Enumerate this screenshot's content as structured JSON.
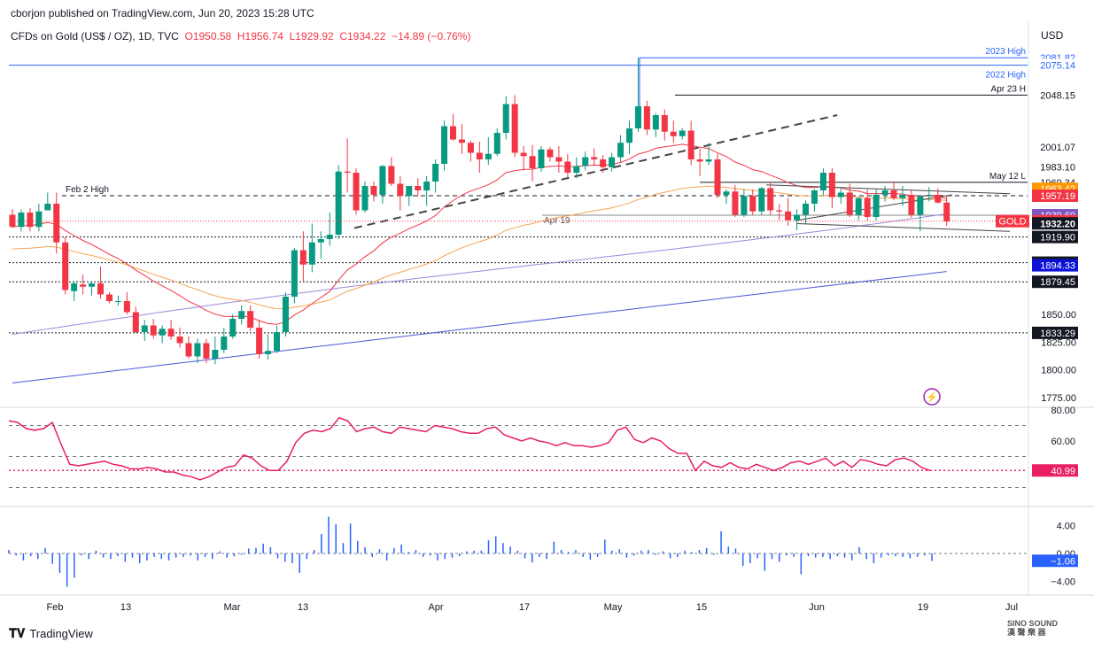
{
  "header": {
    "publisher": "cborjon published on TradingView.com, Jun 20, 2023 15:28 UTC",
    "symbol": "CFDs on Gold (US$ / OZ), 1D, TVC",
    "open": "O1950.58",
    "high": "H1956.74",
    "low": "L1929.92",
    "close": "C1934.22",
    "change": "−14.89 (−0.76%)"
  },
  "currency": "USD",
  "footer": {
    "brand": "TradingView",
    "watermark_line1": "SINO SOUND",
    "watermark_line2": "漢 聲 樂 器"
  },
  "colors": {
    "up": "#089981",
    "down": "#f23645",
    "ema20": "#f23645",
    "ema50": "#f7a350",
    "ma100": "#9c89d9",
    "ma200": "#4a58d9",
    "rsi": "#e91e63",
    "hist": "#2962ff",
    "pricetag_gold": "#f23645",
    "pricetag_1957": "#f23645",
    "pricetag_1963": "#ff9800",
    "pricetag_1939": "#7e57c2",
    "pricetag_1894": "#0c12d9"
  },
  "chart_data": [
    {
      "type": "candlestick",
      "title": "CFDs on Gold (US$ / OZ), 1D, TVC",
      "ylim": [
        1770,
        2090
      ],
      "y_ticks": [
        1775,
        1800,
        1825,
        1850
      ],
      "x_ticks": [
        "Feb",
        "13",
        "Mar",
        "13",
        "Apr",
        "17",
        "May",
        "15",
        "Jun",
        "19",
        "Jul"
      ],
      "candles": [
        [
          1940,
          1945,
          1928,
          1929
        ],
        [
          1929,
          1945,
          1925,
          1942
        ],
        [
          1942,
          1946,
          1925,
          1929
        ],
        [
          1929,
          1950,
          1925,
          1943
        ],
        [
          1944,
          1960,
          1944,
          1950
        ],
        [
          1950,
          1960,
          1905,
          1915
        ],
        [
          1915,
          1920,
          1868,
          1872
        ],
        [
          1871,
          1880,
          1862,
          1878
        ],
        [
          1877,
          1886,
          1868,
          1875
        ],
        [
          1875,
          1880,
          1867,
          1878
        ],
        [
          1878,
          1893,
          1864,
          1868
        ],
        [
          1868,
          1870,
          1860,
          1862
        ],
        [
          1862,
          1867,
          1858,
          1862
        ],
        [
          1862,
          1870,
          1850,
          1852
        ],
        [
          1852,
          1857,
          1833,
          1834
        ],
        [
          1834,
          1845,
          1826,
          1840
        ],
        [
          1840,
          1846,
          1828,
          1831
        ],
        [
          1831,
          1840,
          1824,
          1837
        ],
        [
          1837,
          1845,
          1827,
          1830
        ],
        [
          1830,
          1838,
          1820,
          1824
        ],
        [
          1824,
          1830,
          1810,
          1812
        ],
        [
          1812,
          1828,
          1806,
          1824
        ],
        [
          1824,
          1828,
          1806,
          1810
        ],
        [
          1810,
          1830,
          1805,
          1818
        ],
        [
          1818,
          1838,
          1815,
          1830
        ],
        [
          1830,
          1850,
          1828,
          1846
        ],
        [
          1846,
          1858,
          1841,
          1853
        ],
        [
          1853,
          1858,
          1835,
          1838
        ],
        [
          1838,
          1845,
          1810,
          1814
        ],
        [
          1814,
          1832,
          1809,
          1817
        ],
        [
          1817,
          1840,
          1815,
          1834
        ],
        [
          1834,
          1870,
          1830,
          1866
        ],
        [
          1866,
          1910,
          1860,
          1908
        ],
        [
          1908,
          1925,
          1880,
          1895
        ],
        [
          1895,
          1932,
          1888,
          1915
        ],
        [
          1915,
          1925,
          1900,
          1918
        ],
        [
          1918,
          1942,
          1912,
          1922
        ],
        [
          1922,
          1985,
          1918,
          1979
        ],
        [
          1979,
          2009,
          1960,
          1978
        ],
        [
          1978,
          1982,
          1940,
          1944
        ],
        [
          1944,
          1970,
          1942,
          1966
        ],
        [
          1966,
          1970,
          1952,
          1958
        ],
        [
          1958,
          1985,
          1950,
          1984
        ],
        [
          1984,
          1992,
          1966,
          1968
        ],
        [
          1968,
          1975,
          1944,
          1957
        ],
        [
          1957,
          1966,
          1948,
          1966
        ],
        [
          1966,
          1973,
          1956,
          1962
        ],
        [
          1962,
          1975,
          1948,
          1970
        ],
        [
          1970,
          1990,
          1960,
          1986
        ],
        [
          1986,
          2025,
          1980,
          2020
        ],
        [
          2020,
          2031,
          2007,
          2008
        ],
        [
          2008,
          2022,
          1995,
          2005
        ],
        [
          2005,
          2007,
          1988,
          1996
        ],
        [
          1996,
          2006,
          1978,
          1990
        ],
        [
          1990,
          2010,
          1985,
          1995
        ],
        [
          1995,
          2018,
          1993,
          2014
        ],
        [
          2014,
          2047,
          2008,
          2040
        ],
        [
          2040,
          2048,
          1992,
          1996
        ],
        [
          1996,
          2002,
          1980,
          1993
        ],
        [
          1993,
          2003,
          1970,
          1982
        ],
        [
          1982,
          2002,
          1979,
          1999
        ],
        [
          1999,
          2001,
          1988,
          1992
        ],
        [
          1992,
          2002,
          1978,
          1988
        ],
        [
          1988,
          1995,
          1974,
          1978
        ],
        [
          1978,
          1992,
          1973,
          1984
        ],
        [
          1984,
          1997,
          1980,
          1992
        ],
        [
          1992,
          2000,
          1985,
          1990
        ],
        [
          1990,
          1994,
          1978,
          1983
        ],
        [
          1983,
          1996,
          1979,
          1992
        ],
        [
          1992,
          2012,
          1988,
          2005
        ],
        [
          2005,
          2025,
          1995,
          2018
        ],
        [
          2018,
          2082,
          2015,
          2038
        ],
        [
          2038,
          2043,
          2012,
          2017
        ],
        [
          2017,
          2032,
          2010,
          2030
        ],
        [
          2030,
          2035,
          2007,
          2015
        ],
        [
          2015,
          2025,
          2005,
          2011
        ],
        [
          2011,
          2018,
          2008,
          2016
        ],
        [
          2016,
          2025,
          1985,
          1990
        ],
        [
          1990,
          2000,
          1975,
          1988
        ],
        [
          1988,
          2005,
          1985,
          1990
        ],
        [
          1990,
          1995,
          1955,
          1958
        ],
        [
          1958,
          1963,
          1950,
          1961
        ],
        [
          1961,
          1967,
          1938,
          1940
        ],
        [
          1940,
          1963,
          1938,
          1957
        ],
        [
          1957,
          1963,
          1940,
          1943
        ],
        [
          1943,
          1965,
          1940,
          1964
        ],
        [
          1964,
          1970,
          1940,
          1944
        ],
        [
          1944,
          1950,
          1935,
          1943
        ],
        [
          1943,
          1955,
          1930,
          1935
        ],
        [
          1935,
          1945,
          1926,
          1940
        ],
        [
          1940,
          1953,
          1932,
          1950
        ],
        [
          1950,
          1963,
          1943,
          1962
        ],
        [
          1962,
          1982,
          1958,
          1978
        ],
        [
          1978,
          1982,
          1946,
          1956
        ],
        [
          1956,
          1965,
          1950,
          1960
        ],
        [
          1960,
          1968,
          1938,
          1940
        ],
        [
          1940,
          1956,
          1935,
          1955
        ],
        [
          1955,
          1963,
          1935,
          1938
        ],
        [
          1938,
          1963,
          1935,
          1958
        ],
        [
          1958,
          1966,
          1952,
          1962
        ],
        [
          1962,
          1970,
          1953,
          1955
        ],
        [
          1955,
          1966,
          1948,
          1958
        ],
        [
          1958,
          1962,
          1937,
          1940
        ],
        [
          1940,
          1958,
          1925,
          1957
        ],
        [
          1957,
          1965,
          1952,
          1958
        ],
        [
          1958,
          1964,
          1950,
          1951
        ],
        [
          1951,
          1957,
          1930,
          1934
        ]
      ],
      "levels": [
        {
          "label": "2023 High",
          "value": 2081.82,
          "tag": "2081.82"
        },
        {
          "label": "2022 High",
          "value": 2075.14,
          "tag": "2075.14"
        },
        {
          "label": "Apr 23 H",
          "value": 2048.15,
          "tag": "2048.15"
        },
        {
          "label": "May 12 L",
          "value": 1969.34,
          "tag": "1969.34"
        },
        {
          "label": "Feb 2 High",
          "value": 1957.19,
          "tag": "1957.19"
        },
        {
          "label": "Apr 19",
          "value": 1939.6
        },
        {
          "label": "",
          "value": 1919.9,
          "tag": "1919.90"
        },
        {
          "label": "",
          "value": 1896.74,
          "tag": "1896.74"
        },
        {
          "label": "",
          "value": 1879.45,
          "tag": "1879.45"
        },
        {
          "label": "",
          "value": 1833.29,
          "tag": "1833.29"
        }
      ],
      "price_tags": [
        {
          "text": "2001.07",
          "value": 2001.07,
          "style": "dark"
        },
        {
          "text": "1983.10",
          "value": 1983.1,
          "style": "dark"
        },
        {
          "text": "1959.74",
          "value": 1959.74,
          "style": "dark"
        },
        {
          "text": "1963.42",
          "value": 1963.42,
          "style": "orange"
        },
        {
          "text": "1957.19",
          "value": 1957.19,
          "style": "red"
        },
        {
          "text": "1939.60",
          "value": 1939.6,
          "style": "purple"
        },
        {
          "text": "1934.22",
          "value": 1934.22,
          "style": "red"
        },
        {
          "text": "1932.20",
          "value": 1932.2,
          "style": "dark"
        },
        {
          "text": "1894.33",
          "value": 1894.33,
          "style": "blue"
        }
      ],
      "gold_label": "GOLD"
    },
    {
      "type": "line",
      "name": "RSI",
      "ylim": [
        20,
        80
      ],
      "y_ticks": [
        "80.00",
        "60.00"
      ],
      "current_label": "40.99",
      "current": 40.99,
      "values": [
        73,
        72,
        68,
        67,
        68,
        72,
        58,
        45,
        44,
        45,
        46,
        47,
        45,
        44,
        42,
        42,
        43,
        42,
        40,
        40,
        38,
        37,
        35,
        37,
        40,
        43,
        44,
        51,
        49,
        44,
        41,
        41,
        47,
        59,
        65,
        67,
        66,
        68,
        75,
        73,
        66,
        68,
        69,
        66,
        65,
        69,
        68,
        67,
        66,
        70,
        69,
        68,
        66,
        65,
        65,
        68,
        69,
        64,
        62,
        60,
        62,
        60,
        59,
        57,
        59,
        57,
        57,
        56,
        57,
        59,
        67,
        69,
        61,
        59,
        62,
        60,
        55,
        52,
        52,
        41,
        47,
        44,
        43,
        46,
        43,
        42,
        45,
        43,
        41,
        43,
        46,
        47,
        45,
        47,
        49,
        44,
        47,
        43,
        48,
        47,
        45,
        44,
        48,
        49,
        47,
        43,
        41
      ],
      "dashed_levels": [
        70,
        50,
        30
      ],
      "red_dotted": 40.99
    },
    {
      "type": "bar",
      "name": "Histogram",
      "ylim": [
        -5.5,
        6
      ],
      "y_ticks": [
        "4.00",
        "0.00",
        "−4.00"
      ],
      "current_label": "−1.06",
      "current": -1.06,
      "values": [
        0.5,
        -0.3,
        -1.0,
        -0.4,
        -0.8,
        0.8,
        -1.5,
        -2.8,
        -4.8,
        -3.5,
        -0.3,
        -0.8,
        0.4,
        -0.6,
        -0.8,
        -0.4,
        -1.2,
        -0.6,
        -1.4,
        -1.0,
        -0.5,
        -0.8,
        -1.0,
        -0.6,
        -0.5,
        -0.3,
        -1.0,
        -0.5,
        -0.8,
        0.3,
        -0.6,
        -0.4,
        -0.2,
        0.7,
        0.8,
        1.4,
        0.9,
        -0.7,
        -1.2,
        -1.4,
        -2.8,
        -0.8,
        0.5,
        2.8,
        5.3,
        4.2,
        1.5,
        4.3,
        1.8,
        0.9,
        -0.5,
        0.6,
        -1.0,
        0.8,
        1.3,
        0.2,
        0.5,
        -0.5,
        -0.3,
        -1.0,
        -0.8,
        -0.6,
        -0.4,
        0.3,
        0.4,
        0.4,
        1.9,
        2.5,
        1.5,
        1.0,
        0.4,
        -0.7,
        -1.3,
        -0.5,
        -0.8,
        1.7,
        0.5,
        0.2,
        0.5,
        -0.5,
        -0.9,
        -0.5,
        2.0,
        0.4,
        0.6,
        -0.6,
        -0.3,
        0.4,
        0.5,
        -0.2,
        0.3,
        -0.7,
        -0.5,
        0.4,
        0.2,
        0.5,
        0.8,
        -0.2,
        3.2,
        1.0,
        0.7,
        -1.8,
        -1.4,
        -0.7,
        -2.5,
        -0.8,
        -1.2,
        -0.3,
        -0.5,
        -3.0,
        -0.4,
        -0.6,
        -0.5,
        -0.8,
        -0.4,
        -0.6,
        -1.0,
        0.9,
        -0.8,
        -1.4,
        -0.6,
        -0.3,
        -0.4,
        -0.5,
        -0.7,
        -0.5,
        -0.3,
        -1.1
      ]
    }
  ]
}
